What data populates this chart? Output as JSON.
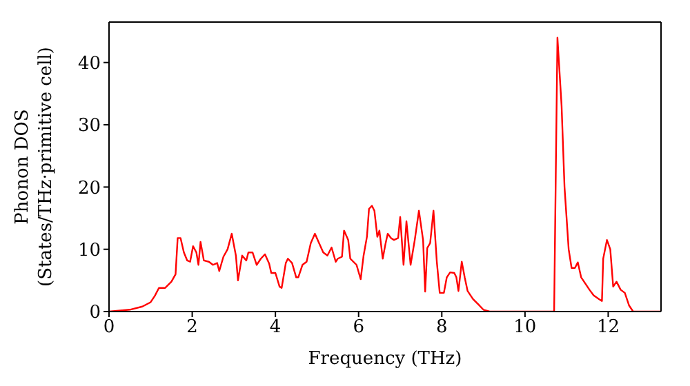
{
  "chart_data": {
    "type": "line",
    "xlabel": "Frequency (THz)",
    "ylabel": "Phonon DOS\n(States/THz·primitive cell)",
    "xlim": [
      0,
      13.27
    ],
    "xticks": [
      0,
      2,
      4,
      6,
      8,
      10,
      12
    ],
    "ylim": [
      0,
      46.5
    ],
    "yticks": [
      0,
      10,
      20,
      30,
      40
    ],
    "grid": false,
    "legend": false,
    "marker": "none",
    "line_style": "solid",
    "series": [
      {
        "color": "#ff0000",
        "x": [
          0,
          0.5,
          0.8,
          1.0,
          1.1,
          1.2,
          1.35,
          1.5,
          1.6,
          1.65,
          1.72,
          1.8,
          1.88,
          1.95,
          2.02,
          2.1,
          2.15,
          2.2,
          2.28,
          2.4,
          2.5,
          2.6,
          2.65,
          2.75,
          2.85,
          2.95,
          3.05,
          3.1,
          3.2,
          3.3,
          3.35,
          3.45,
          3.55,
          3.65,
          3.75,
          3.85,
          3.9,
          4.0,
          4.1,
          4.15,
          4.25,
          4.3,
          4.4,
          4.5,
          4.55,
          4.65,
          4.75,
          4.85,
          4.95,
          5.05,
          5.15,
          5.25,
          5.35,
          5.45,
          5.5,
          5.6,
          5.65,
          5.75,
          5.8,
          5.95,
          6.05,
          6.12,
          6.2,
          6.25,
          6.32,
          6.38,
          6.45,
          6.5,
          6.58,
          6.65,
          6.7,
          6.78,
          6.85,
          6.95,
          7.0,
          7.08,
          7.15,
          7.25,
          7.35,
          7.45,
          7.55,
          7.6,
          7.65,
          7.72,
          7.8,
          7.88,
          7.95,
          8.05,
          8.12,
          8.2,
          8.3,
          8.35,
          8.4,
          8.48,
          8.55,
          8.62,
          8.75,
          8.9,
          9.0,
          9.15,
          10.7,
          10.78,
          10.88,
          10.95,
          11.05,
          11.12,
          11.2,
          11.27,
          11.35,
          11.45,
          11.55,
          11.65,
          11.78,
          11.85,
          11.88,
          11.97,
          12.05,
          12.12,
          12.2,
          12.3,
          12.4,
          12.5,
          12.6,
          13.27
        ],
        "values": [
          0,
          0.3,
          0.8,
          1.5,
          2.5,
          3.8,
          3.8,
          4.8,
          6,
          11.8,
          11.8,
          9.5,
          8.2,
          8,
          10.5,
          9.5,
          7.5,
          11.2,
          8.2,
          8,
          7.5,
          7.8,
          6.5,
          8.8,
          10,
          12.5,
          9,
          5,
          9,
          8.2,
          9.5,
          9.5,
          7.5,
          8.5,
          9.2,
          7.7,
          6.2,
          6.2,
          4,
          3.8,
          7.8,
          8.5,
          7.8,
          5.5,
          5.5,
          7.5,
          8,
          11,
          12.5,
          11,
          9.5,
          9,
          10.3,
          8,
          8.5,
          8.8,
          13,
          11.5,
          8.5,
          7.5,
          5.2,
          9,
          12,
          16.5,
          17,
          16.2,
          12,
          13,
          8.5,
          11,
          12.5,
          11.8,
          11.5,
          11.8,
          15.2,
          7.5,
          14.5,
          7.5,
          11.5,
          16.2,
          11.5,
          3.2,
          10.2,
          11,
          16.2,
          8,
          3,
          3,
          5.5,
          6.3,
          6.2,
          5.5,
          3.3,
          8,
          5.5,
          3.3,
          2,
          1,
          0.3,
          0,
          0,
          44,
          33,
          20,
          10,
          7,
          7,
          7.9,
          5.5,
          4.5,
          3.5,
          2.6,
          2,
          1.7,
          8.5,
          11.5,
          10,
          4,
          4.8,
          3.5,
          3,
          1,
          0,
          0
        ]
      }
    ]
  }
}
